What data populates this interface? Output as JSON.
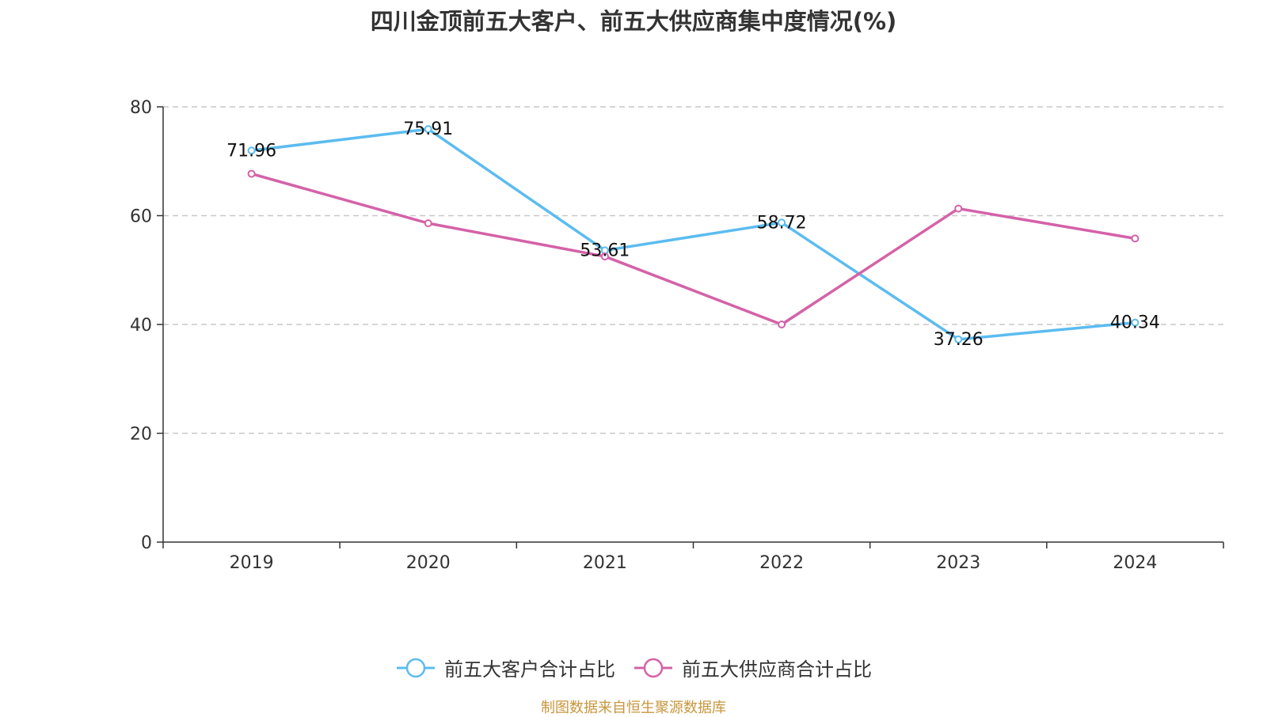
{
  "chart_data": {
    "type": "line",
    "title": "四川金顶前五大客户、前五大供应商集中度情况(%)",
    "categories": [
      "2019",
      "2020",
      "2021",
      "2022",
      "2023",
      "2024"
    ],
    "series": [
      {
        "name": "前五大客户合计占比",
        "color": "#5bbcf0",
        "values": [
          71.96,
          75.91,
          53.61,
          58.72,
          37.26,
          40.34
        ],
        "show_labels": true
      },
      {
        "name": "前五大供应商合计占比",
        "color": "#d462a8",
        "values": [
          67.7,
          58.6,
          52.5,
          40.0,
          61.3,
          55.8
        ],
        "show_labels": false
      }
    ],
    "ylim": [
      0,
      80
    ],
    "yticks": [
      0,
      20,
      40,
      60,
      80
    ],
    "grid": true,
    "legend_position": "bottom"
  },
  "footer": {
    "source": "制图数据来自恒生聚源数据库"
  }
}
